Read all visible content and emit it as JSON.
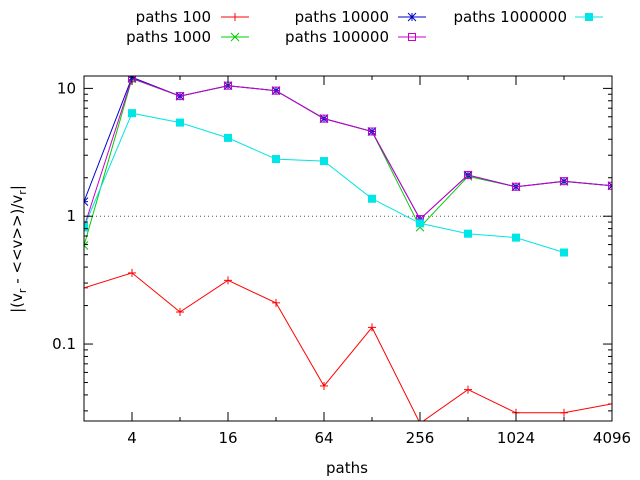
{
  "chart_data": {
    "type": "line",
    "xlabel": "paths",
    "ylabel": "|(v_r - <<v>>)/v_r|",
    "ylabel_parts": {
      "a": "|(v",
      "sub1": "r",
      "b": " - <<v>>)/v",
      "sub2": "r",
      "c": "|"
    },
    "x_scale": "log2",
    "y_scale": "log10",
    "xlim": [
      2,
      4096
    ],
    "ylim": [
      0.025,
      12.5
    ],
    "x_ticks": [
      4,
      16,
      64,
      256,
      1024,
      4096
    ],
    "x_tick_labels": [
      "4",
      "16",
      "64",
      "256",
      "1024",
      "4096"
    ],
    "y_ticks": [
      0.1,
      1,
      10
    ],
    "y_tick_labels": [
      "0.1",
      "1",
      "10"
    ],
    "reference_line": {
      "y": 1,
      "style": "dotted"
    },
    "legend_position": "top, outside plot",
    "series": [
      {
        "name": "paths 100",
        "color": "#ff0000",
        "marker": "plus",
        "x": [
          2,
          4,
          8,
          16,
          32,
          64,
          128,
          256,
          512,
          1024,
          2048,
          4096
        ],
        "values": [
          0.275,
          0.36,
          0.178,
          0.315,
          0.21,
          0.047,
          0.135,
          0.024,
          0.044,
          0.029,
          0.029,
          0.034
        ]
      },
      {
        "name": "paths 1000",
        "color": "#00cc00",
        "marker": "cross",
        "x": [
          2,
          4,
          8,
          16,
          32,
          64,
          128,
          256,
          512,
          1024,
          2048,
          4096
        ],
        "values": [
          0.59,
          11.9,
          8.7,
          10.5,
          9.6,
          5.8,
          4.6,
          0.82,
          2.05,
          1.7,
          1.87,
          1.73
        ]
      },
      {
        "name": "paths 10000",
        "color": "#0000cc",
        "marker": "star",
        "x": [
          2,
          4,
          8,
          16,
          32,
          64,
          128,
          256,
          512,
          1024,
          2048,
          4096
        ],
        "values": [
          1.3,
          12.2,
          8.7,
          10.5,
          9.6,
          5.8,
          4.6,
          0.95,
          2.1,
          1.7,
          1.88,
          1.73
        ]
      },
      {
        "name": "paths 100000",
        "color": "#cc00cc",
        "marker": "open-square",
        "x": [
          2,
          4,
          8,
          16,
          32,
          64,
          128,
          256,
          512,
          1024,
          2048,
          4096
        ],
        "values": [
          0.82,
          12.0,
          8.7,
          10.5,
          9.6,
          5.8,
          4.6,
          0.95,
          2.1,
          1.7,
          1.88,
          1.73
        ]
      },
      {
        "name": "paths 1000000",
        "color": "#00e5e5",
        "marker": "filled-square",
        "x": [
          2,
          4,
          8,
          16,
          32,
          64,
          128,
          256,
          512,
          1024,
          2048
        ],
        "values": [
          0.82,
          6.4,
          5.4,
          4.1,
          2.8,
          2.7,
          1.37,
          0.88,
          0.73,
          0.68,
          0.52
        ]
      }
    ]
  }
}
